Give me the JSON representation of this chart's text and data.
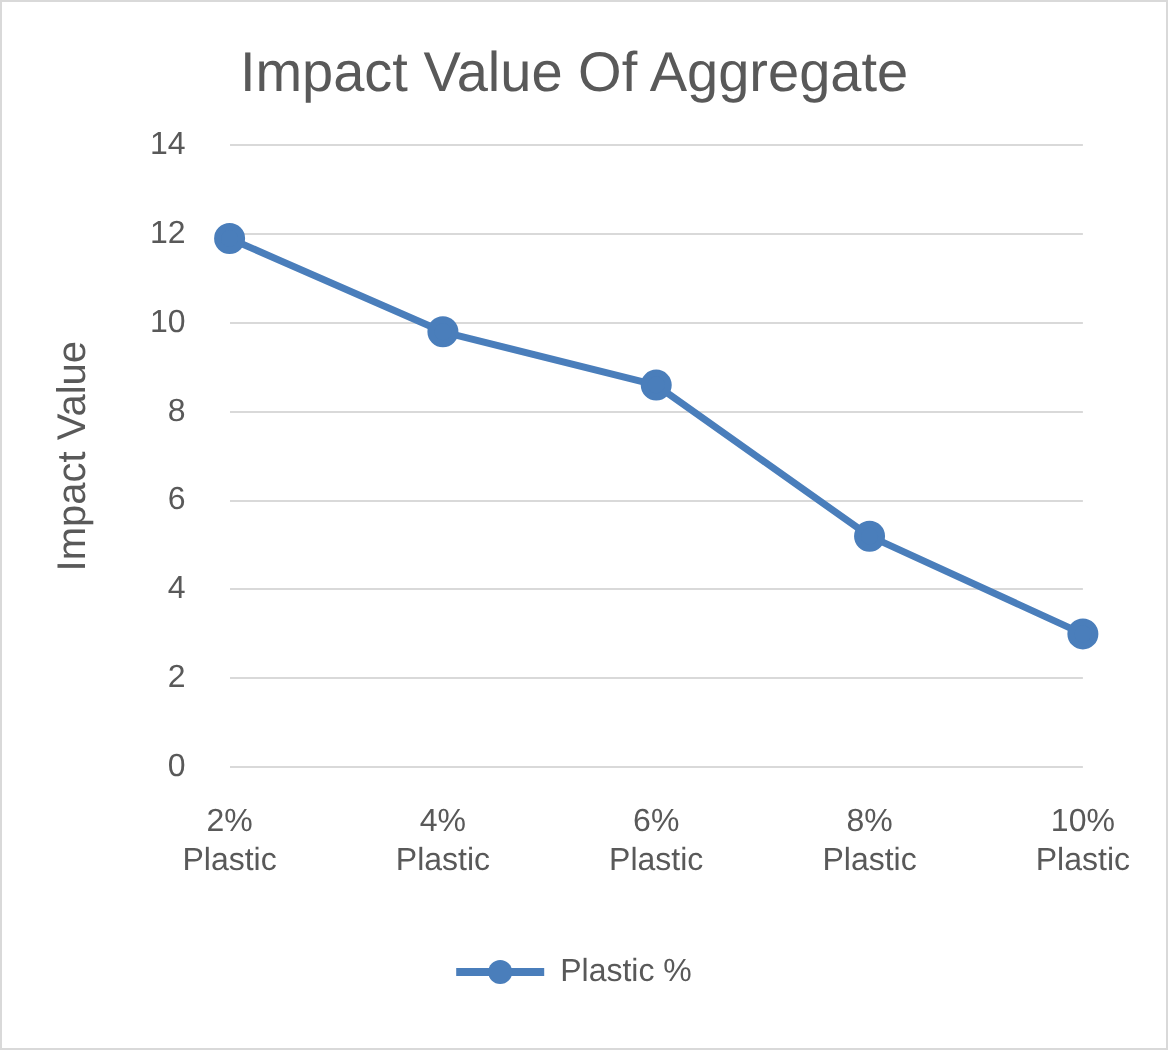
{
  "chart_data": {
    "type": "line",
    "title": "Impact Value Of Aggregate",
    "ylabel": "Impact Value",
    "categories": [
      "2% Plastic",
      "4% Plastic",
      "6% Plastic",
      "8% Plastic",
      "10% Plastic"
    ],
    "series": [
      {
        "name": "Plastic %",
        "color": "#4a7ebb",
        "values": [
          11.9,
          9.8,
          8.6,
          5.2,
          3.0
        ]
      }
    ],
    "ylim": [
      0,
      14
    ],
    "yticks": [
      0,
      2,
      4,
      6,
      8,
      10,
      12,
      14
    ],
    "grid": "y",
    "legend": "bottom",
    "marker": "circle",
    "line_style": "solid"
  }
}
